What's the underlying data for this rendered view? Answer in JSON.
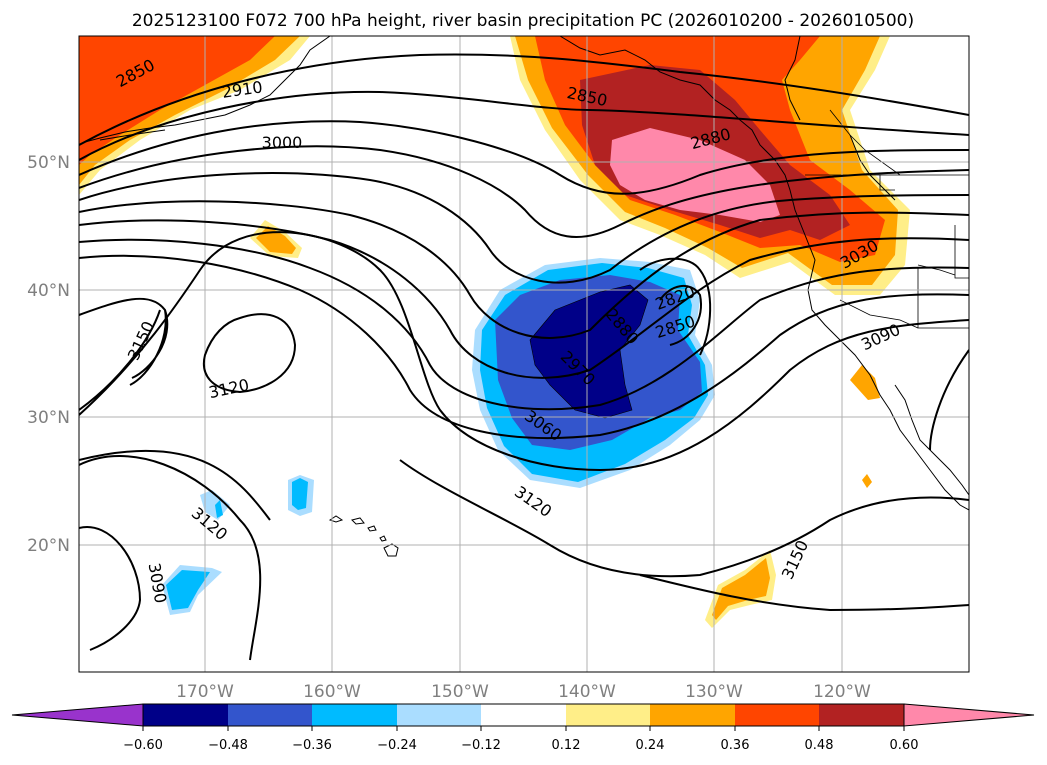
{
  "title": "2025123100 F072 700 hPa height, river basin precipitation PC (2026010200 - 2026010500)",
  "lat_labels": [
    "50°N",
    "40°N",
    "30°N",
    "20°N"
  ],
  "lon_labels": [
    "170°W",
    "160°W",
    "150°W",
    "140°W",
    "130°W",
    "120°W"
  ],
  "contour_labels": [
    "2850",
    "2910",
    "3000",
    "2850",
    "2880",
    "3030",
    "2820",
    "2850",
    "2880",
    "2970",
    "3060",
    "3090",
    "3120",
    "3150",
    "3120",
    "3120",
    "3090",
    "3150"
  ],
  "colorbar": {
    "ticks": [
      "−0.60",
      "−0.48",
      "−0.36",
      "−0.24",
      "−0.12",
      "0.12",
      "0.24",
      "0.36",
      "0.48",
      "0.60"
    ],
    "colors": [
      "#9933cc",
      "#000088",
      "#3355cc",
      "#00bbff",
      "#aaddff",
      "#ffffff",
      "#ffee88",
      "#ffa500",
      "#ff4500",
      "#b22222",
      "#ff88aa"
    ]
  },
  "fill_colors": {
    "pink": "#ff88aa",
    "darkred": "#b22222",
    "orangered": "#ff4500",
    "orange": "#ffa500",
    "lightyellow": "#ffee88",
    "navy": "#000088",
    "blue": "#3355cc",
    "cyan": "#00bbff",
    "lightblue": "#aaddff"
  }
}
